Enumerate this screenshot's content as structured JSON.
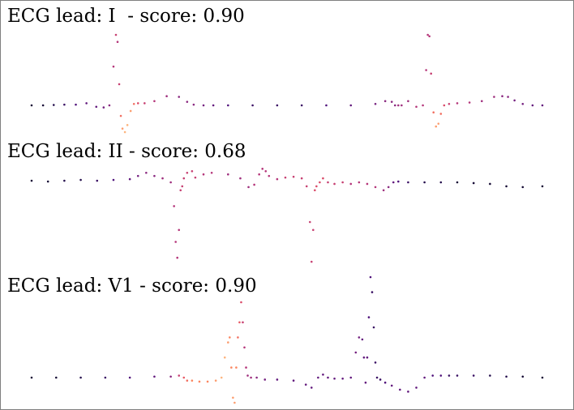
{
  "chart_data": [
    {
      "type": "scatter",
      "title": "ECG lead: I  - score: 0.90",
      "colormap": "magma",
      "series": [
        {
          "x": [
            0,
            14,
            27,
            40,
            54,
            67,
            79,
            88,
            95,
            100,
            103,
            105,
            107,
            109,
            111,
            114,
            117,
            121,
            125,
            130,
            138,
            150,
            165,
            180,
            190,
            198,
            210,
            222,
            240,
            270,
            300,
            330,
            360,
            390,
            420,
            432,
            440,
            444,
            448,
            452,
            460,
            470,
            478,
            482,
            484,
            486,
            488,
            491,
            494,
            497,
            500,
            504,
            510,
            520,
            535,
            550,
            565,
            575,
            582,
            590,
            600,
            612,
            624
          ],
          "y": [
            0.0,
            0.0,
            0.005,
            0.01,
            0.01,
            0.03,
            -0.02,
            -0.03,
            0.0,
            0.55,
            1.0,
            0.9,
            0.3,
            -0.15,
            -0.33,
            -0.38,
            -0.28,
            -0.08,
            0.02,
            0.03,
            0.03,
            0.06,
            0.13,
            0.12,
            0.05,
            0.01,
            0.0,
            0.0,
            0.0,
            0.0,
            0.0,
            0.0,
            0.0,
            0.0,
            0.02,
            0.06,
            0.05,
            0.0,
            0.0,
            0.0,
            0.06,
            -0.02,
            0.0,
            0.5,
            1.0,
            0.98,
            0.45,
            -0.1,
            -0.3,
            -0.26,
            -0.12,
            0.0,
            0.02,
            0.03,
            0.04,
            0.06,
            0.12,
            0.13,
            0.12,
            0.07,
            0.02,
            0.0,
            0.0
          ],
          "c": [
            0.1,
            0.1,
            0.15,
            0.2,
            0.25,
            0.3,
            0.3,
            0.35,
            0.4,
            0.5,
            0.55,
            0.5,
            0.55,
            0.7,
            0.8,
            0.85,
            0.85,
            0.8,
            0.7,
            0.6,
            0.55,
            0.5,
            0.45,
            0.4,
            0.4,
            0.4,
            0.35,
            0.3,
            0.25,
            0.2,
            0.2,
            0.2,
            0.25,
            0.3,
            0.35,
            0.4,
            0.4,
            0.4,
            0.45,
            0.45,
            0.45,
            0.5,
            0.5,
            0.5,
            0.5,
            0.5,
            0.55,
            0.7,
            0.8,
            0.8,
            0.7,
            0.6,
            0.55,
            0.5,
            0.5,
            0.45,
            0.45,
            0.4,
            0.4,
            0.35,
            0.35,
            0.3,
            0.3
          ]
        }
      ]
    },
    {
      "type": "scatter",
      "title": "ECG lead: II - score: 0.68",
      "colormap": "magma",
      "series": [
        {
          "x": [
            0,
            20,
            40,
            60,
            80,
            100,
            120,
            130,
            140,
            150,
            160,
            170,
            174,
            176,
            178,
            180,
            182,
            184,
            186,
            190,
            196,
            200,
            210,
            220,
            240,
            255,
            265,
            272,
            278,
            282,
            286,
            290,
            300,
            310,
            320,
            330,
            336,
            340,
            342,
            344,
            346,
            348,
            352,
            356,
            362,
            370,
            380,
            390,
            400,
            410,
            420,
            430,
            436,
            442,
            448,
            460,
            480,
            500,
            520,
            540,
            560,
            580,
            600,
            624
          ],
          "y": [
            0.02,
            0.01,
            0.02,
            0.03,
            0.02,
            0.03,
            0.04,
            0.08,
            0.12,
            0.08,
            0.05,
            0.0,
            -0.3,
            -0.75,
            -0.95,
            -0.6,
            -0.1,
            -0.05,
            0.05,
            0.12,
            0.14,
            0.06,
            0.1,
            0.12,
            0.1,
            0.05,
            -0.06,
            -0.03,
            0.1,
            0.17,
            0.14,
            0.08,
            0.04,
            0.06,
            0.07,
            0.05,
            -0.05,
            -0.5,
            -1.0,
            -0.6,
            -0.1,
            -0.05,
            0.0,
            0.05,
            0.0,
            -0.02,
            0.0,
            -0.02,
            0.0,
            -0.02,
            -0.06,
            -0.1,
            -0.06,
            0.0,
            0.01,
            0.0,
            0.0,
            0.0,
            0.0,
            -0.01,
            -0.02,
            -0.05,
            -0.06,
            -0.05
          ],
          "c": [
            0.1,
            0.1,
            0.15,
            0.15,
            0.2,
            0.25,
            0.3,
            0.35,
            0.4,
            0.4,
            0.45,
            0.45,
            0.5,
            0.5,
            0.5,
            0.5,
            0.55,
            0.55,
            0.55,
            0.55,
            0.55,
            0.55,
            0.5,
            0.5,
            0.45,
            0.45,
            0.45,
            0.5,
            0.5,
            0.5,
            0.5,
            0.5,
            0.5,
            0.55,
            0.55,
            0.55,
            0.55,
            0.55,
            0.55,
            0.55,
            0.6,
            0.6,
            0.6,
            0.6,
            0.55,
            0.55,
            0.55,
            0.5,
            0.5,
            0.5,
            0.5,
            0.45,
            0.4,
            0.3,
            0.25,
            0.2,
            0.15,
            0.15,
            0.1,
            0.1,
            0.1,
            0.1,
            0.1,
            0.1
          ]
        }
      ]
    },
    {
      "type": "scatter",
      "title": "ECG lead: V1 - score: 0.90",
      "colormap": "magma",
      "series": [
        {
          "x": [
            0,
            30,
            60,
            90,
            120,
            150,
            170,
            180,
            186,
            190,
            196,
            205,
            215,
            225,
            232,
            236,
            240,
            242,
            244,
            246,
            248,
            250,
            252,
            254,
            256,
            258,
            260,
            262,
            264,
            268,
            275,
            285,
            300,
            320,
            335,
            342,
            350,
            356,
            362,
            370,
            380,
            390,
            396,
            400,
            404,
            406,
            408,
            410,
            412,
            414,
            416,
            418,
            420,
            422,
            426,
            432,
            440,
            450,
            460,
            470,
            480,
            490,
            500,
            510,
            520,
            540,
            560,
            580,
            600,
            624
          ],
          "y": [
            0.0,
            0.0,
            0.0,
            0.0,
            0.0,
            0.01,
            0.01,
            0.02,
            0.0,
            -0.03,
            -0.03,
            -0.04,
            -0.04,
            -0.03,
            0.0,
            0.2,
            0.35,
            0.4,
            0.1,
            -0.2,
            -0.25,
            0.1,
            0.4,
            0.55,
            0.75,
            0.55,
            0.3,
            0.1,
            0.02,
            0.0,
            0.0,
            -0.02,
            -0.02,
            -0.03,
            -0.07,
            -0.1,
            0.0,
            0.03,
            0.0,
            -0.01,
            -0.01,
            0.0,
            0.25,
            0.4,
            0.38,
            0.2,
            -0.05,
            0.2,
            0.6,
            1.0,
            0.85,
            0.5,
            0.15,
            0.0,
            -0.02,
            -0.05,
            -0.08,
            -0.12,
            -0.14,
            -0.1,
            0.0,
            0.02,
            0.02,
            0.02,
            0.02,
            0.02,
            0.02,
            0.01,
            0.01,
            0.0
          ],
          "c": [
            0.1,
            0.1,
            0.15,
            0.2,
            0.25,
            0.3,
            0.4,
            0.55,
            0.65,
            0.7,
            0.75,
            0.75,
            0.75,
            0.8,
            0.85,
            0.85,
            0.8,
            0.75,
            0.75,
            0.8,
            0.8,
            0.75,
            0.7,
            0.65,
            0.6,
            0.55,
            0.5,
            0.5,
            0.45,
            0.45,
            0.4,
            0.35,
            0.3,
            0.3,
            0.3,
            0.3,
            0.3,
            0.3,
            0.3,
            0.3,
            0.3,
            0.3,
            0.35,
            0.35,
            0.3,
            0.3,
            0.3,
            0.3,
            0.25,
            0.25,
            0.2,
            0.2,
            0.2,
            0.2,
            0.2,
            0.25,
            0.3,
            0.3,
            0.3,
            0.3,
            0.3,
            0.25,
            0.25,
            0.2,
            0.2,
            0.2,
            0.15,
            0.15,
            0.1,
            0.1
          ]
        }
      ]
    }
  ]
}
